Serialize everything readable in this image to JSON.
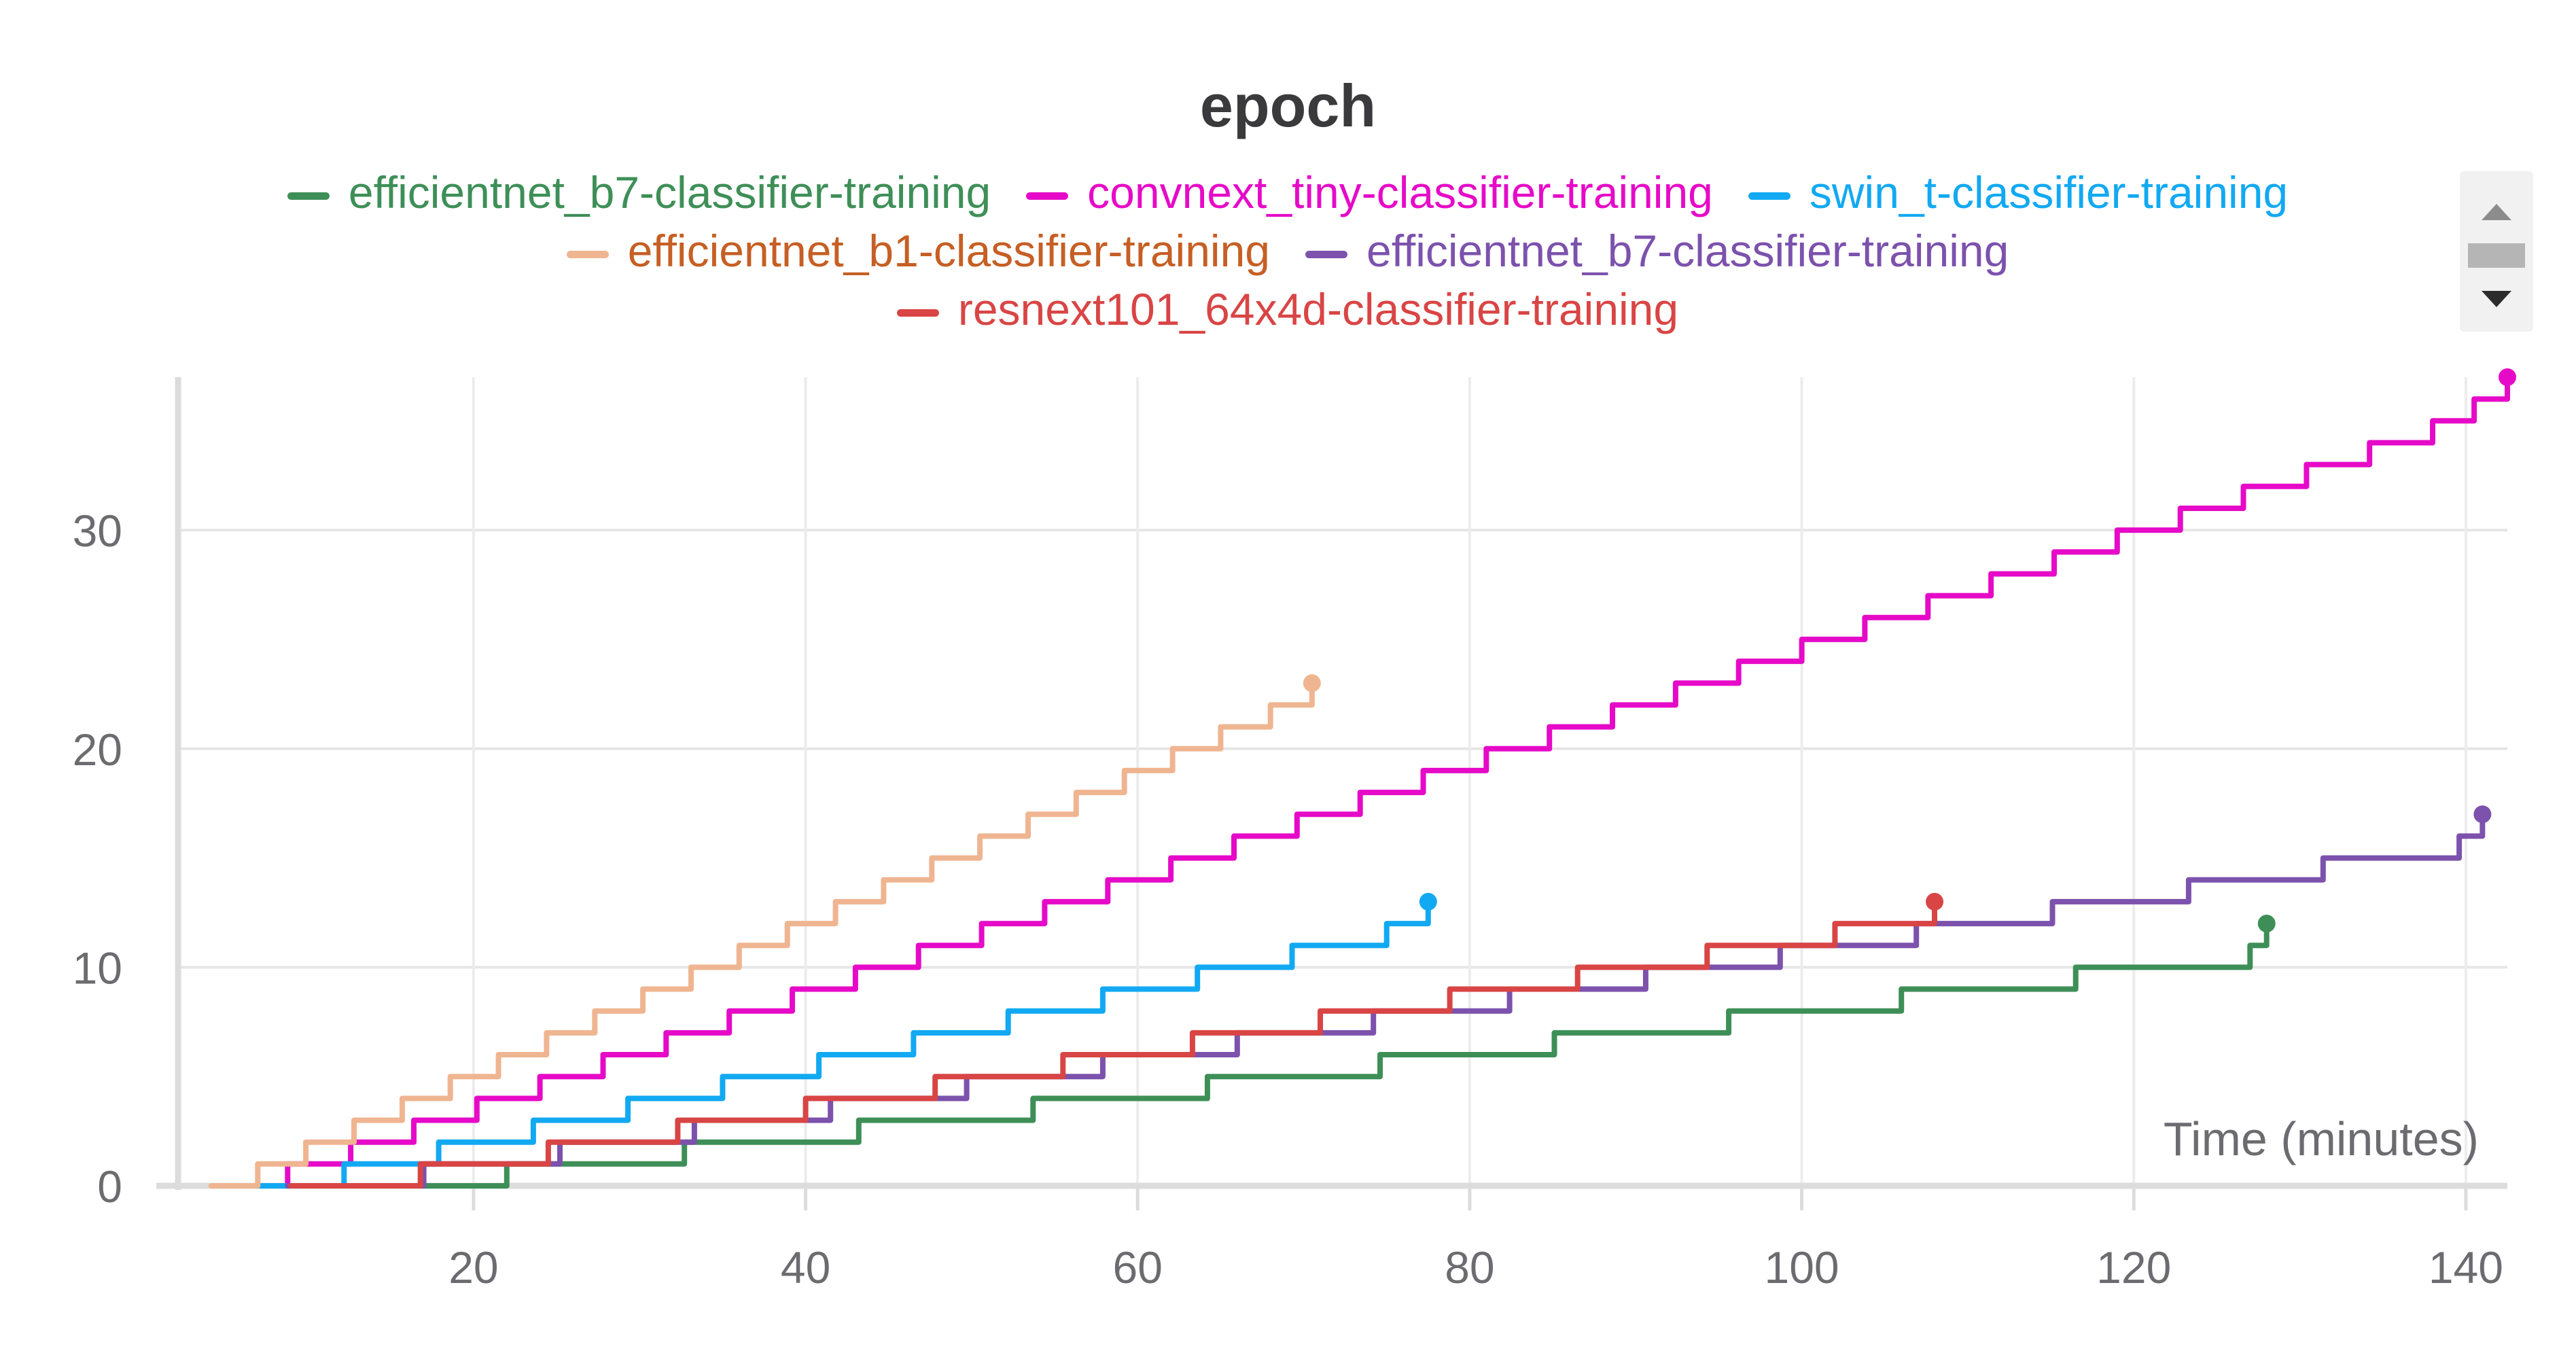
{
  "chart_data": {
    "type": "line",
    "title": "epoch",
    "xlabel": "Time (minutes)",
    "ylabel": "",
    "xlim": [
      2.2,
      142.5
    ],
    "ylim": [
      0,
      37
    ],
    "x_ticks": [
      20,
      40,
      60,
      80,
      100,
      120,
      140
    ],
    "y_ticks": [
      0,
      10,
      20,
      30
    ],
    "grid": true,
    "legend_position": "top",
    "series": [
      {
        "name": "efficientnet_b7-classifier-training",
        "color": "#3e8f57",
        "text_color": "#3e8f57",
        "x": [
          11.5,
          22.0,
          32.7,
          43.2,
          53.7,
          64.2,
          74.6,
          85.1,
          95.6,
          106.0,
          116.5,
          127.0,
          128.0
        ],
        "y": [
          0,
          1,
          2,
          3,
          4,
          5,
          6,
          7,
          8,
          9,
          10,
          11,
          12
        ]
      },
      {
        "name": "convnext_tiny-classifier-training",
        "color": "#e60ac8",
        "text_color": "#e60ac8",
        "x": [
          5.0,
          8.8,
          12.6,
          16.4,
          20.2,
          24.0,
          27.8,
          31.6,
          35.4,
          39.2,
          43.0,
          46.8,
          50.6,
          54.4,
          58.2,
          62.0,
          65.8,
          69.6,
          73.4,
          77.2,
          81.0,
          84.8,
          88.6,
          92.4,
          96.2,
          100.0,
          103.8,
          107.6,
          111.4,
          115.2,
          119.0,
          122.8,
          126.6,
          130.4,
          134.2,
          138.0,
          140.5,
          142.5
        ],
        "y": [
          0,
          1,
          2,
          3,
          4,
          5,
          6,
          7,
          8,
          9,
          10,
          11,
          12,
          13,
          14,
          15,
          16,
          17,
          18,
          19,
          20,
          21,
          22,
          23,
          24,
          25,
          26,
          27,
          28,
          29,
          30,
          31,
          32,
          33,
          34,
          35,
          36,
          37
        ]
      },
      {
        "name": "swin_t-classifier-training",
        "color": "#12a9f2",
        "text_color": "#12a9f2",
        "x": [
          6.5,
          12.2,
          17.9,
          23.6,
          29.3,
          35.0,
          40.8,
          46.5,
          52.2,
          57.9,
          63.6,
          69.3,
          75.0,
          77.5
        ],
        "y": [
          0,
          1,
          2,
          3,
          4,
          5,
          6,
          7,
          8,
          9,
          10,
          11,
          12,
          13
        ]
      },
      {
        "name": "efficientnet_b1-classifier-training",
        "color": "#efb591",
        "text_color": "#c65f24",
        "x": [
          4.2,
          7.0,
          9.9,
          12.8,
          15.7,
          18.6,
          21.5,
          24.4,
          27.3,
          30.2,
          33.1,
          36.0,
          38.9,
          41.8,
          44.7,
          47.6,
          50.5,
          53.4,
          56.3,
          59.2,
          62.1,
          65.0,
          68.0,
          70.5
        ],
        "y": [
          0,
          1,
          2,
          3,
          4,
          5,
          6,
          7,
          8,
          9,
          10,
          11,
          12,
          13,
          14,
          15,
          16,
          17,
          18,
          19,
          20,
          21,
          22,
          23
        ]
      },
      {
        "name": "efficientnet_b7-classifier-training",
        "color": "#7c52ad",
        "text_color": "#7c52ad",
        "x": [
          8.8,
          17.0,
          25.2,
          33.3,
          41.5,
          49.7,
          57.9,
          66.0,
          74.2,
          82.4,
          90.6,
          98.7,
          106.9,
          115.1,
          123.3,
          131.4,
          139.6,
          141.0
        ],
        "y": [
          0,
          1,
          2,
          3,
          4,
          5,
          6,
          7,
          8,
          9,
          10,
          11,
          12,
          13,
          14,
          15,
          16,
          17
        ]
      },
      {
        "name": "resnext101_64x4d-classifier-training",
        "color": "#d94545",
        "text_color": "#d94545",
        "x": [
          9.0,
          16.8,
          24.5,
          32.3,
          40.0,
          47.8,
          55.5,
          63.3,
          71.0,
          78.8,
          86.5,
          94.3,
          102.0,
          108.0
        ],
        "y": [
          0,
          1,
          2,
          3,
          4,
          5,
          6,
          7,
          8,
          9,
          10,
          11,
          12,
          13
        ]
      }
    ],
    "legend_rows": [
      [
        0,
        1,
        2
      ],
      [
        3,
        4
      ],
      [
        5
      ]
    ]
  }
}
